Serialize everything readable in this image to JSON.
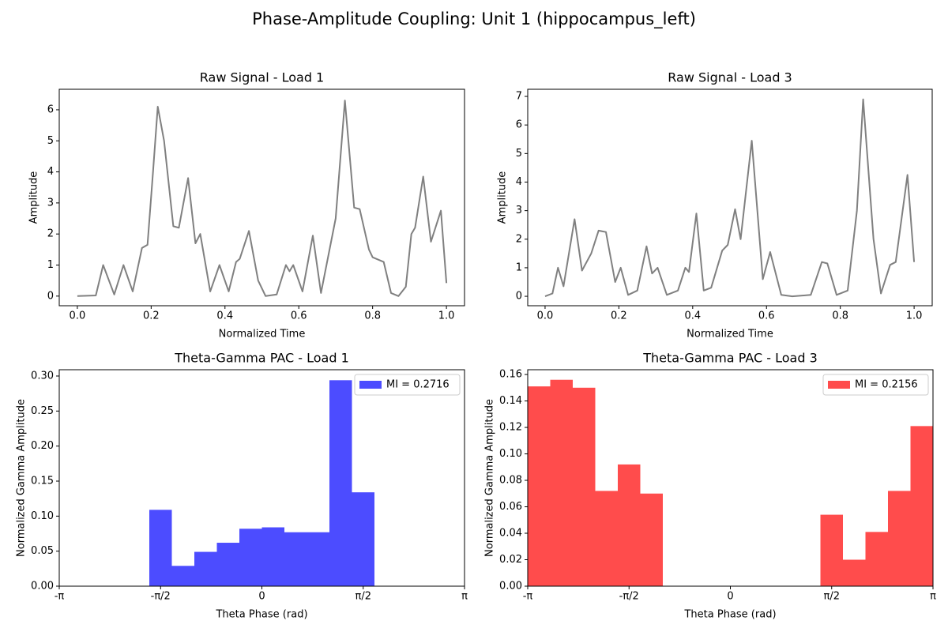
{
  "title": "Phase-Amplitude Coupling: Unit 1 (hippocampus_left)",
  "chart_data": [
    {
      "type": "line",
      "title": "Raw Signal - Load 1",
      "x_label": "Normalized Time",
      "y_label": "Amplitude",
      "color": "#808080",
      "x": [
        0,
        0.05,
        0.07,
        0.1,
        0.125,
        0.15,
        0.175,
        0.19,
        0.205,
        0.218,
        0.235,
        0.26,
        0.275,
        0.3,
        0.32,
        0.333,
        0.36,
        0.385,
        0.41,
        0.43,
        0.44,
        0.465,
        0.49,
        0.51,
        0.54,
        0.565,
        0.575,
        0.585,
        0.61,
        0.638,
        0.66,
        0.7,
        0.725,
        0.75,
        0.765,
        0.79,
        0.8,
        0.83,
        0.85,
        0.87,
        0.89,
        0.905,
        0.915,
        0.937,
        0.958,
        0.985,
        1.0
      ],
      "values": [
        0,
        0.02,
        1.0,
        0.05,
        1.0,
        0.15,
        1.55,
        1.65,
        4.0,
        6.1,
        5.0,
        2.25,
        2.2,
        3.8,
        1.7,
        2.0,
        0.15,
        1.0,
        0.15,
        1.1,
        1.2,
        2.1,
        0.5,
        0.0,
        0.05,
        1.0,
        0.8,
        1.0,
        0.15,
        1.95,
        0.1,
        2.5,
        6.3,
        2.85,
        2.8,
        1.5,
        1.25,
        1.1,
        0.1,
        0.0,
        0.3,
        2.0,
        2.2,
        3.85,
        1.75,
        2.75,
        0.42
      ],
      "xlim": [
        -0.049,
        1.049
      ],
      "ylim": [
        -0.31,
        6.66
      ],
      "xticks": [
        {
          "value": 0,
          "label": "0.0"
        },
        0.2,
        0.4,
        0.6,
        0.8,
        {
          "value": 1,
          "label": "1.0"
        }
      ],
      "yticks": [
        0,
        1,
        2,
        3,
        4,
        5,
        6
      ]
    },
    {
      "type": "line",
      "title": "Raw Signal - Load 3",
      "x_label": "Normalized Time",
      "y_label": "Amplitude",
      "color": "#808080",
      "x": [
        0,
        0.02,
        0.035,
        0.05,
        0.08,
        0.1,
        0.125,
        0.145,
        0.165,
        0.19,
        0.205,
        0.225,
        0.25,
        0.275,
        0.29,
        0.305,
        0.33,
        0.36,
        0.38,
        0.39,
        0.41,
        0.43,
        0.45,
        0.48,
        0.495,
        0.515,
        0.53,
        0.56,
        0.59,
        0.61,
        0.64,
        0.67,
        0.72,
        0.75,
        0.765,
        0.79,
        0.82,
        0.845,
        0.862,
        0.89,
        0.91,
        0.935,
        0.95,
        0.982,
        1.0
      ],
      "values": [
        0,
        0.1,
        1.0,
        0.35,
        2.7,
        0.9,
        1.5,
        2.3,
        2.25,
        0.5,
        1.0,
        0.05,
        0.2,
        1.75,
        0.8,
        1.0,
        0.05,
        0.2,
        1.0,
        0.85,
        2.9,
        0.2,
        0.3,
        1.6,
        1.8,
        3.05,
        2.0,
        5.45,
        0.6,
        1.55,
        0.05,
        0.0,
        0.05,
        1.2,
        1.15,
        0.05,
        0.2,
        3.0,
        6.9,
        2.0,
        0.1,
        1.1,
        1.2,
        4.25,
        1.2
      ],
      "xlim": [
        -0.047,
        1.049
      ],
      "ylim": [
        -0.33,
        7.25
      ],
      "xticks": [
        {
          "value": 0,
          "label": "0.0"
        },
        0.2,
        0.4,
        0.6,
        0.8,
        {
          "value": 1,
          "label": "1.0"
        }
      ],
      "yticks": [
        0,
        1,
        2,
        3,
        4,
        5,
        6,
        7
      ]
    },
    {
      "type": "histogram",
      "title": "Theta-Gamma PAC - Load 1",
      "x_label": "Theta Phase (rad)",
      "y_label": "Normalized Gamma Amplitude",
      "legend": "upper right",
      "bins": [
        -3.141593,
        -2.792527,
        -2.443461,
        -2.094395,
        -1.745329,
        -1.396263,
        -1.047198,
        -0.698132,
        -0.349066,
        0,
        0.349066,
        0.698132,
        1.047198,
        1.396263,
        1.745329,
        2.094395,
        2.443461,
        2.792527,
        3.141593
      ],
      "series": [
        {
          "name": "MI = 0.2716",
          "color": "#4c4cff",
          "values": [
            0,
            0,
            0,
            0,
            0.109,
            0.029,
            0.049,
            0.062,
            0.082,
            0.084,
            0.077,
            0.077,
            0.294,
            0.134,
            0,
            0,
            0,
            0
          ]
        }
      ],
      "xlim": [
        -3.141593,
        3.141593
      ],
      "ylim": [
        0,
        0.309
      ],
      "xticks": [
        {
          "value": -3.141593,
          "label": "-π"
        },
        {
          "value": -1.570796,
          "label": "-π/2"
        },
        0,
        {
          "value": 1.570796,
          "label": "π/2"
        },
        {
          "value": 3.141593,
          "label": "π"
        }
      ],
      "yticks": [
        {
          "value": 0,
          "label": "0.00"
        },
        0.05,
        {
          "value": 0.1,
          "label": "0.10"
        },
        0.15,
        {
          "value": 0.2,
          "label": "0.20"
        },
        0.25,
        {
          "value": 0.3,
          "label": "0.30"
        }
      ]
    },
    {
      "type": "histogram",
      "title": "Theta-Gamma PAC - Load 3",
      "x_label": "Theta Phase (rad)",
      "y_label": "Normalized Gamma Amplitude",
      "legend": "upper right",
      "bins": [
        -3.141593,
        -2.792527,
        -2.443461,
        -2.094395,
        -1.745329,
        -1.396263,
        -1.047198,
        -0.698132,
        -0.349066,
        0,
        0.349066,
        0.698132,
        1.047198,
        1.396263,
        1.745329,
        2.094395,
        2.443461,
        2.792527,
        3.141593
      ],
      "series": [
        {
          "name": "MI = 0.2156",
          "color": "#ff4c4c",
          "values": [
            0.151,
            0.156,
            0.15,
            0.072,
            0.092,
            0.07,
            0,
            0,
            0,
            0,
            0,
            0,
            0,
            0.054,
            0.02,
            0.041,
            0.072,
            0.121
          ]
        }
      ],
      "xlim": [
        -3.141593,
        3.141593
      ],
      "ylim": [
        0,
        0.1636
      ],
      "xticks": [
        {
          "value": -3.141593,
          "label": "-π"
        },
        {
          "value": -1.570796,
          "label": "-π/2"
        },
        0,
        {
          "value": 1.570796,
          "label": "π/2"
        },
        {
          "value": 3.141593,
          "label": "π"
        }
      ],
      "yticks": [
        {
          "value": 0,
          "label": "0.00"
        },
        0.02,
        0.04,
        0.06,
        0.08,
        {
          "value": 0.1,
          "label": "0.10"
        },
        0.12,
        0.14,
        0.16
      ]
    }
  ]
}
